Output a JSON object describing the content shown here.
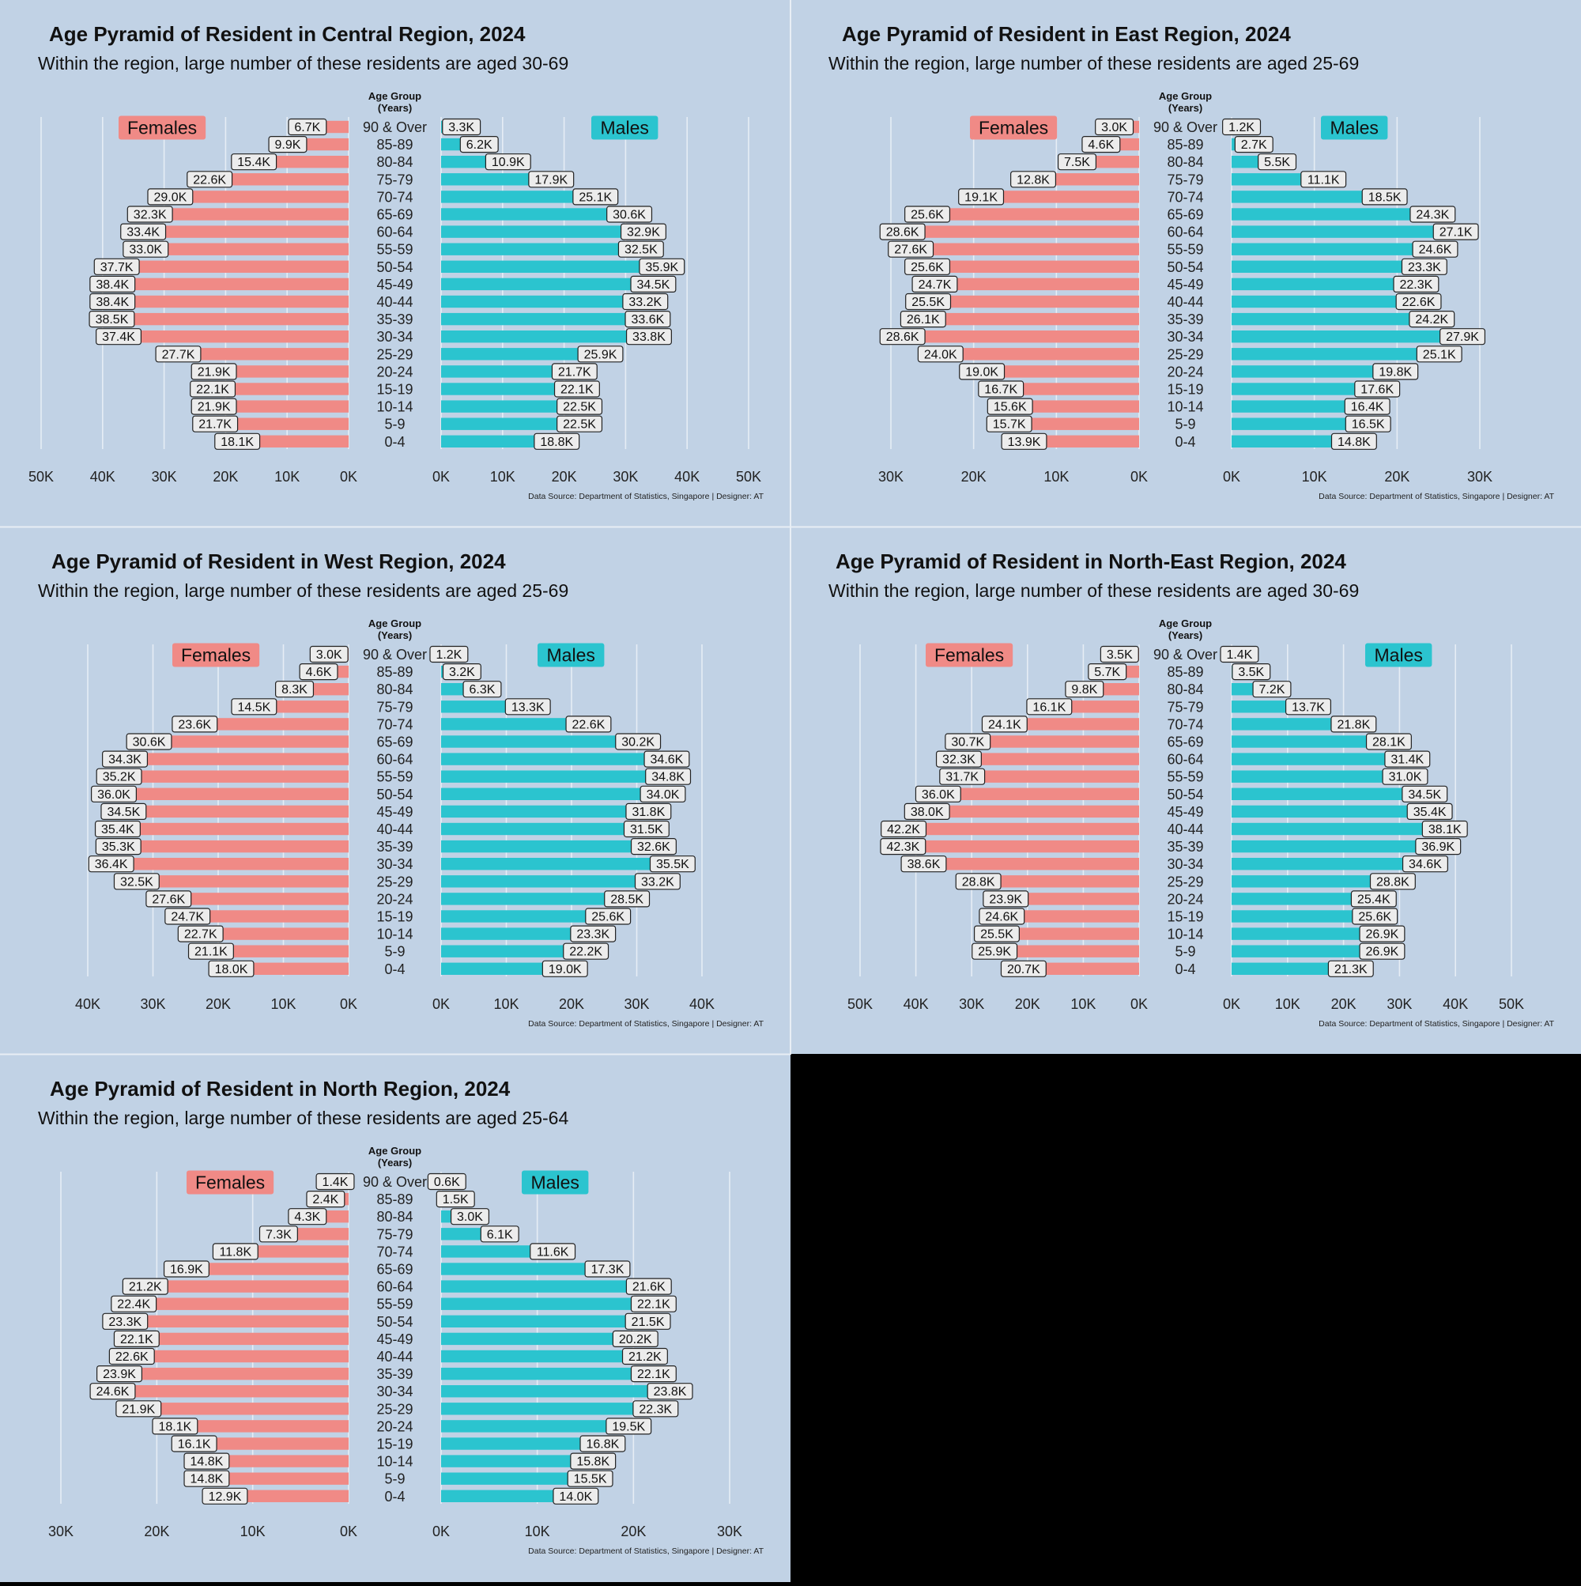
{
  "chart_data": [
    {
      "type": "bar",
      "title": "Age Pyramid of Resident in Central Region, 2024",
      "subtitle": "Within the region, large number of these residents are aged 30-69",
      "caption": "Data Source: Department of Statistics, Singapore | Designer: AT",
      "center_label": "Age Group\n(Years)",
      "legend": [
        "Females",
        "Males"
      ],
      "categories": [
        "0-4",
        "5-9",
        "10-14",
        "15-19",
        "20-24",
        "25-29",
        "30-34",
        "35-39",
        "40-44",
        "45-49",
        "50-54",
        "55-59",
        "60-64",
        "65-69",
        "70-74",
        "75-79",
        "80-84",
        "85-89",
        "90 & Over"
      ],
      "series": [
        {
          "name": "Females",
          "values": [
            18.1,
            21.7,
            21.9,
            22.1,
            21.9,
            27.7,
            37.4,
            38.5,
            38.4,
            38.4,
            37.7,
            33.0,
            33.4,
            32.3,
            29.0,
            22.6,
            15.4,
            9.9,
            6.7
          ],
          "labels": [
            "18.1K",
            "21.7K",
            "21.9K",
            "22.1K",
            "21.9K",
            "27.7K",
            "37.4K",
            "38.5K",
            "38.4K",
            "38.4K",
            "37.7K",
            "33.0K",
            "33.4K",
            "32.3K",
            "29.0K",
            "22.6K",
            "15.4K",
            "9.9K",
            "6.7K"
          ]
        },
        {
          "name": "Males",
          "values": [
            18.8,
            22.5,
            22.5,
            22.1,
            21.7,
            25.9,
            33.8,
            33.6,
            33.2,
            34.5,
            35.9,
            32.5,
            32.9,
            30.6,
            25.1,
            17.9,
            10.9,
            6.2,
            3.3
          ],
          "labels": [
            "18.8K",
            "22.5K",
            "22.5K",
            "22.1K",
            "21.7K",
            "25.9K",
            "33.8K",
            "33.6K",
            "33.2K",
            "34.5K",
            "35.9K",
            "32.5K",
            "32.9K",
            "30.6K",
            "25.1K",
            "17.9K",
            "10.9K",
            "6.2K",
            "3.3K"
          ]
        }
      ],
      "xmax": 50,
      "ticks": [
        "0K",
        "10K",
        "20K",
        "30K",
        "40K",
        "50K"
      ]
    },
    {
      "type": "bar",
      "title": "Age Pyramid of Resident in East Region, 2024",
      "subtitle": "Within the region, large number of these residents are aged 25-69",
      "caption": "Data Source: Department of Statistics, Singapore | Designer: AT",
      "center_label": "Age Group\n(Years)",
      "legend": [
        "Females",
        "Males"
      ],
      "categories": [
        "0-4",
        "5-9",
        "10-14",
        "15-19",
        "20-24",
        "25-29",
        "30-34",
        "35-39",
        "40-44",
        "45-49",
        "50-54",
        "55-59",
        "60-64",
        "65-69",
        "70-74",
        "75-79",
        "80-84",
        "85-89",
        "90 & Over"
      ],
      "series": [
        {
          "name": "Females",
          "values": [
            13.9,
            15.7,
            15.6,
            16.7,
            19.0,
            24.0,
            28.6,
            26.1,
            25.5,
            24.7,
            25.6,
            27.6,
            28.6,
            25.6,
            19.1,
            12.8,
            7.5,
            4.6,
            3.0
          ],
          "labels": [
            "13.9K",
            "15.7K",
            "15.6K",
            "16.7K",
            "19.0K",
            "24.0K",
            "28.6K",
            "26.1K",
            "25.5K",
            "24.7K",
            "25.6K",
            "27.6K",
            "28.6K",
            "25.6K",
            "19.1K",
            "12.8K",
            "7.5K",
            "4.6K",
            "3.0K"
          ]
        },
        {
          "name": "Males",
          "values": [
            14.8,
            16.5,
            16.4,
            17.6,
            19.8,
            25.1,
            27.9,
            24.2,
            22.6,
            22.3,
            23.3,
            24.6,
            27.1,
            24.3,
            18.5,
            11.1,
            5.5,
            2.7,
            1.2
          ],
          "labels": [
            "14.8K",
            "16.5K",
            "16.4K",
            "17.6K",
            "19.8K",
            "25.1K",
            "27.9K",
            "24.2K",
            "22.6K",
            "22.3K",
            "23.3K",
            "24.6K",
            "27.1K",
            "24.3K",
            "18.5K",
            "11.1K",
            "5.5K",
            "2.7K",
            "1.2K"
          ]
        }
      ],
      "xmax": 30,
      "ticks": [
        "0K",
        "10K",
        "20K",
        "30K"
      ]
    },
    {
      "type": "bar",
      "title": "Age Pyramid of Resident in West Region, 2024",
      "subtitle": "Within the region, large number of these residents are aged 25-69",
      "caption": "Data Source: Department of Statistics, Singapore | Designer: AT",
      "center_label": "Age Group\n(Years)",
      "legend": [
        "Females",
        "Males"
      ],
      "categories": [
        "0-4",
        "5-9",
        "10-14",
        "15-19",
        "20-24",
        "25-29",
        "30-34",
        "35-39",
        "40-44",
        "45-49",
        "50-54",
        "55-59",
        "60-64",
        "65-69",
        "70-74",
        "75-79",
        "80-84",
        "85-89",
        "90 & Over"
      ],
      "series": [
        {
          "name": "Females",
          "values": [
            18.0,
            21.1,
            22.7,
            24.7,
            27.6,
            32.5,
            36.4,
            35.3,
            35.4,
            34.5,
            36.0,
            35.2,
            34.3,
            30.6,
            23.6,
            14.5,
            8.3,
            4.6,
            3.0
          ],
          "labels": [
            "18.0K",
            "21.1K",
            "22.7K",
            "24.7K",
            "27.6K",
            "32.5K",
            "36.4K",
            "35.3K",
            "35.4K",
            "34.5K",
            "36.0K",
            "35.2K",
            "34.3K",
            "30.6K",
            "23.6K",
            "14.5K",
            "8.3K",
            "4.6K",
            "3.0K"
          ]
        },
        {
          "name": "Males",
          "values": [
            19.0,
            22.2,
            23.3,
            25.6,
            28.5,
            33.2,
            35.5,
            32.6,
            31.5,
            31.8,
            34.0,
            34.8,
            34.6,
            30.2,
            22.6,
            13.3,
            6.3,
            3.2,
            1.2
          ],
          "labels": [
            "19.0K",
            "22.2K",
            "23.3K",
            "25.6K",
            "28.5K",
            "33.2K",
            "35.5K",
            "32.6K",
            "31.5K",
            "31.8K",
            "34.0K",
            "34.8K",
            "34.6K",
            "30.2K",
            "22.6K",
            "13.3K",
            "6.3K",
            "3.2K",
            "1.2K"
          ]
        }
      ],
      "xmax": 40,
      "ticks": [
        "0K",
        "10K",
        "20K",
        "30K",
        "40K"
      ]
    },
    {
      "type": "bar",
      "title": "Age Pyramid of Resident in North-East Region, 2024",
      "subtitle": "Within the region, large number of these residents are aged 30-69",
      "caption": "Data Source: Department of Statistics, Singapore | Designer: AT",
      "center_label": "Age Group\n(Years)",
      "legend": [
        "Females",
        "Males"
      ],
      "categories": [
        "0-4",
        "5-9",
        "10-14",
        "15-19",
        "20-24",
        "25-29",
        "30-34",
        "35-39",
        "40-44",
        "45-49",
        "50-54",
        "55-59",
        "60-64",
        "65-69",
        "70-74",
        "75-79",
        "80-84",
        "85-89",
        "90 & Over"
      ],
      "series": [
        {
          "name": "Females",
          "values": [
            20.7,
            25.9,
            25.5,
            24.6,
            23.9,
            28.8,
            38.6,
            42.3,
            42.2,
            38.0,
            36.0,
            31.7,
            32.3,
            30.7,
            24.1,
            16.1,
            9.8,
            5.7,
            3.5
          ],
          "labels": [
            "20.7K",
            "25.9K",
            "25.5K",
            "24.6K",
            "23.9K",
            "28.8K",
            "38.6K",
            "42.3K",
            "42.2K",
            "38.0K",
            "36.0K",
            "31.7K",
            "32.3K",
            "30.7K",
            "24.1K",
            "16.1K",
            "9.8K",
            "5.7K",
            "3.5K"
          ]
        },
        {
          "name": "Males",
          "values": [
            21.3,
            26.9,
            26.9,
            25.6,
            25.4,
            28.8,
            34.6,
            36.9,
            38.1,
            35.4,
            34.5,
            31.0,
            31.4,
            28.1,
            21.8,
            13.7,
            7.2,
            3.5,
            1.4
          ],
          "labels": [
            "21.3K",
            "26.9K",
            "26.9K",
            "25.6K",
            "25.4K",
            "28.8K",
            "34.6K",
            "36.9K",
            "38.1K",
            "35.4K",
            "34.5K",
            "31.0K",
            "31.4K",
            "28.1K",
            "21.8K",
            "13.7K",
            "7.2K",
            "3.5K",
            "1.4K"
          ]
        }
      ],
      "xmax": 50,
      "ticks": [
        "0K",
        "10K",
        "20K",
        "30K",
        "40K",
        "50K"
      ]
    },
    {
      "type": "bar",
      "title": "Age Pyramid of Resident in North Region, 2024",
      "subtitle": "Within the region, large number of these residents are aged 25-64",
      "caption": "Data Source: Department of Statistics, Singapore | Designer: AT",
      "center_label": "Age Group\n(Years)",
      "legend": [
        "Females",
        "Males"
      ],
      "categories": [
        "0-4",
        "5-9",
        "10-14",
        "15-19",
        "20-24",
        "25-29",
        "30-34",
        "35-39",
        "40-44",
        "45-49",
        "50-54",
        "55-59",
        "60-64",
        "65-69",
        "70-74",
        "75-79",
        "80-84",
        "85-89",
        "90 & Over"
      ],
      "series": [
        {
          "name": "Females",
          "values": [
            12.9,
            14.8,
            14.8,
            16.1,
            18.1,
            21.9,
            24.6,
            23.9,
            22.6,
            22.1,
            23.3,
            22.4,
            21.2,
            16.9,
            11.8,
            7.3,
            4.3,
            2.4,
            1.4
          ],
          "labels": [
            "12.9K",
            "14.8K",
            "14.8K",
            "16.1K",
            "18.1K",
            "21.9K",
            "24.6K",
            "23.9K",
            "22.6K",
            "22.1K",
            "23.3K",
            "22.4K",
            "21.2K",
            "16.9K",
            "11.8K",
            "7.3K",
            "4.3K",
            "2.4K",
            "1.4K"
          ]
        },
        {
          "name": "Males",
          "values": [
            14.0,
            15.5,
            15.8,
            16.8,
            19.5,
            22.3,
            23.8,
            22.1,
            21.2,
            20.2,
            21.5,
            22.1,
            21.6,
            17.3,
            11.6,
            6.1,
            3.0,
            1.5,
            0.6
          ],
          "labels": [
            "14.0K",
            "15.5K",
            "15.8K",
            "16.8K",
            "19.5K",
            "22.3K",
            "23.8K",
            "22.1K",
            "21.2K",
            "20.2K",
            "21.5K",
            "22.1K",
            "21.6K",
            "17.3K",
            "11.6K",
            "6.1K",
            "3.0K",
            "1.5K",
            "0.6K"
          ]
        }
      ],
      "xmax": 30,
      "ticks": [
        "0K",
        "10K",
        "20K",
        "30K"
      ]
    }
  ],
  "colors": {
    "panel_bg": "#c1d2e5",
    "females": "#f08a86",
    "males": "#2bc4cf",
    "grid": "#e6edf5",
    "page_bg": "#000000"
  }
}
